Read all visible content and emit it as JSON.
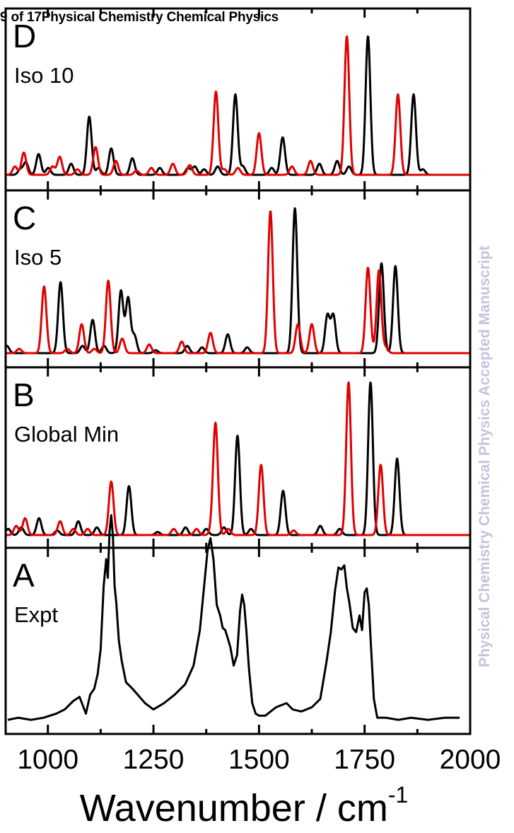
{
  "header": {
    "page": "9 of 17",
    "journal": "Physical Chemistry Chemical Physics"
  },
  "side_text": "Physical Chemistry Chemical Physics Accepted Manuscript",
  "colors": {
    "black": "#000000",
    "red": "#e00000"
  },
  "chart_data": {
    "type": "line",
    "xlabel": "Wavenumber / cm",
    "xlabel_superscript": "-1",
    "xlim": [
      900,
      2000
    ],
    "xticks": [
      1000,
      1250,
      1500,
      1750,
      2000
    ],
    "xtick_labels": [
      "1000",
      "1250",
      "1500",
      "1750",
      "2000"
    ],
    "minor_ticks": [
      1125,
      1375,
      1625,
      1875
    ],
    "ylabel": "",
    "grid": false,
    "panels": [
      {
        "letter": "D",
        "label": "Iso 10",
        "series": [
          {
            "color": "black",
            "peaks": [
              [
                935,
                0.04
              ],
              [
                948,
                0.09
              ],
              [
                978,
                0.15
              ],
              [
                1001,
                0.05
              ],
              [
                1055,
                0.08
              ],
              [
                1098,
                0.42
              ],
              [
                1120,
                0.05
              ],
              [
                1150,
                0.19
              ],
              [
                1200,
                0.12
              ],
              [
                1265,
                0.05
              ],
              [
                1332,
                0.05
              ],
              [
                1348,
                0.06
              ],
              [
                1370,
                0.04
              ],
              [
                1402,
                0.06
              ],
              [
                1444,
                0.58
              ],
              [
                1462,
                0.06
              ],
              [
                1530,
                0.05
              ],
              [
                1556,
                0.27
              ],
              [
                1643,
                0.08
              ],
              [
                1685,
                0.1
              ],
              [
                1713,
                0.06
              ],
              [
                1758,
                1.0
              ],
              [
                1866,
                0.58
              ],
              [
                1888,
                0.04
              ]
            ]
          },
          {
            "color": "red",
            "peaks": [
              [
                922,
                0.06
              ],
              [
                943,
                0.16
              ],
              [
                1011,
                0.06
              ],
              [
                1028,
                0.13
              ],
              [
                1070,
                0.04
              ],
              [
                1113,
                0.2
              ],
              [
                1161,
                0.1
              ],
              [
                1210,
                0.03
              ],
              [
                1245,
                0.05
              ],
              [
                1296,
                0.08
              ],
              [
                1336,
                0.07
              ],
              [
                1398,
                0.6
              ],
              [
                1418,
                0.04
              ],
              [
                1450,
                0.05
              ],
              [
                1500,
                0.3
              ],
              [
                1578,
                0.06
              ],
              [
                1622,
                0.1
              ],
              [
                1708,
                1.0
              ],
              [
                1829,
                0.58
              ]
            ]
          }
        ]
      },
      {
        "letter": "C",
        "label": "Iso 5",
        "series": [
          {
            "color": "black",
            "peaks": [
              [
                903,
                0.05
              ],
              [
                1030,
                0.49
              ],
              [
                1082,
                0.05
              ],
              [
                1106,
                0.23
              ],
              [
                1133,
                0.05
              ],
              [
                1173,
                0.43
              ],
              [
                1190,
                0.38
              ],
              [
                1205,
                0.12
              ],
              [
                1255,
                0.02
              ],
              [
                1330,
                0.05
              ],
              [
                1365,
                0.04
              ],
              [
                1426,
                0.13
              ],
              [
                1472,
                0.04
              ],
              [
                1585,
                1.0
              ],
              [
                1662,
                0.26
              ],
              [
                1676,
                0.26
              ],
              [
                1790,
                0.62
              ],
              [
                1823,
                0.6
              ]
            ]
          },
          {
            "color": "red",
            "peaks": [
              [
                932,
                0.03
              ],
              [
                991,
                0.46
              ],
              [
                1046,
                0.03
              ],
              [
                1080,
                0.2
              ],
              [
                1110,
                0.03
              ],
              [
                1143,
                0.5
              ],
              [
                1176,
                0.1
              ],
              [
                1240,
                0.06
              ],
              [
                1317,
                0.08
              ],
              [
                1385,
                0.14
              ],
              [
                1527,
                0.98
              ],
              [
                1592,
                0.2
              ],
              [
                1625,
                0.2
              ],
              [
                1758,
                0.59
              ],
              [
                1784,
                0.57
              ],
              [
                1800,
                0.04
              ]
            ]
          }
        ]
      },
      {
        "letter": "B",
        "label": "Global Min",
        "series": [
          {
            "color": "black",
            "peaks": [
              [
                906,
                0.04
              ],
              [
                937,
                0.05
              ],
              [
                979,
                0.11
              ],
              [
                1022,
                0.03
              ],
              [
                1072,
                0.09
              ],
              [
                1116,
                0.05
              ],
              [
                1192,
                0.32
              ],
              [
                1260,
                0.02
              ],
              [
                1326,
                0.05
              ],
              [
                1375,
                0.04
              ],
              [
                1417,
                0.05
              ],
              [
                1449,
                0.65
              ],
              [
                1481,
                0.04
              ],
              [
                1557,
                0.29
              ],
              [
                1645,
                0.06
              ],
              [
                1691,
                0.04
              ],
              [
                1764,
                1.0
              ],
              [
                1827,
                0.5
              ]
            ]
          },
          {
            "color": "red",
            "peaks": [
              [
                925,
                0.06
              ],
              [
                946,
                0.11
              ],
              [
                1029,
                0.09
              ],
              [
                1060,
                0.04
              ],
              [
                1094,
                0.04
              ],
              [
                1150,
                0.35
              ],
              [
                1298,
                0.04
              ],
              [
                1352,
                0.04
              ],
              [
                1389,
                0.04
              ],
              [
                1397,
                0.72
              ],
              [
                1427,
                0.04
              ],
              [
                1505,
                0.46
              ],
              [
                1582,
                0.03
              ],
              [
                1712,
                1.0
              ],
              [
                1788,
                0.46
              ]
            ]
          }
        ]
      },
      {
        "letter": "A",
        "label": "Expt",
        "series": [
          {
            "color": "black",
            "x": [
              905,
              930,
              960,
              990,
              1020,
              1040,
              1060,
              1075,
              1090,
              1100,
              1110,
              1118,
              1125,
              1132,
              1138,
              1142,
              1146,
              1150,
              1154,
              1158,
              1162,
              1168,
              1175,
              1185,
              1200,
              1230,
              1250,
              1275,
              1300,
              1325,
              1345,
              1360,
              1370,
              1378,
              1385,
              1392,
              1400,
              1408,
              1414,
              1420,
              1426,
              1432,
              1440,
              1448,
              1455,
              1460,
              1465,
              1470,
              1476,
              1484,
              1492,
              1500,
              1515,
              1540,
              1565,
              1580,
              1600,
              1625,
              1645,
              1660,
              1670,
              1680,
              1688,
              1695,
              1702,
              1708,
              1714,
              1722,
              1730,
              1738,
              1744,
              1750,
              1755,
              1760,
              1765,
              1772,
              1780,
              1800,
              1830,
              1860,
              1900,
              1940,
              1975
            ],
            "y": [
              0.02,
              0.03,
              0.02,
              0.03,
              0.05,
              0.07,
              0.11,
              0.13,
              0.05,
              0.14,
              0.17,
              0.24,
              0.36,
              0.66,
              0.79,
              0.7,
              0.92,
              1.0,
              0.9,
              0.66,
              0.58,
              0.4,
              0.3,
              0.2,
              0.17,
              0.1,
              0.07,
              0.1,
              0.14,
              0.19,
              0.28,
              0.45,
              0.66,
              0.83,
              0.89,
              0.79,
              0.57,
              0.52,
              0.46,
              0.45,
              0.41,
              0.37,
              0.28,
              0.33,
              0.54,
              0.62,
              0.57,
              0.45,
              0.27,
              0.1,
              0.05,
              0.04,
              0.04,
              0.08,
              0.1,
              0.07,
              0.06,
              0.08,
              0.12,
              0.3,
              0.44,
              0.64,
              0.75,
              0.74,
              0.76,
              0.65,
              0.58,
              0.46,
              0.44,
              0.52,
              0.45,
              0.63,
              0.65,
              0.57,
              0.38,
              0.12,
              0.03,
              0.03,
              0.02,
              0.03,
              0.02,
              0.03,
              0.03
            ]
          }
        ]
      }
    ]
  }
}
